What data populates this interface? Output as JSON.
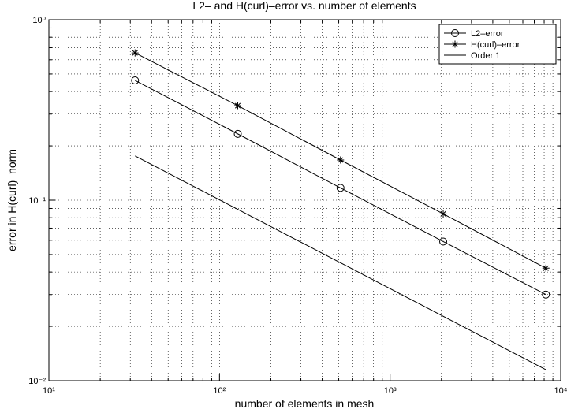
{
  "chart_data": {
    "type": "line",
    "title": "L2– and H(curl)–error vs. number of elements",
    "xlabel": "number of elements in mesh",
    "ylabel": "error in H(curl)–norm",
    "xscale": "log",
    "yscale": "log",
    "xlim": [
      10,
      10000
    ],
    "ylim": [
      0.01,
      1
    ],
    "xticks": [
      {
        "value": 10,
        "label": "10¹"
      },
      {
        "value": 100,
        "label": "10²"
      },
      {
        "value": 1000,
        "label": "10³"
      },
      {
        "value": 10000,
        "label": "10⁴"
      }
    ],
    "yticks": [
      {
        "value": 0.01,
        "label": "10⁻²"
      },
      {
        "value": 0.1,
        "label": "10⁻¹"
      },
      {
        "value": 1,
        "label": "10⁰"
      }
    ],
    "grid": true,
    "legend": "upper right",
    "x": [
      32,
      128,
      512,
      2048,
      8192
    ],
    "series": [
      {
        "name": "L2–error",
        "color": "#000000",
        "marker": "o",
        "values": [
          0.461,
          0.233,
          0.117,
          0.059,
          0.03
        ]
      },
      {
        "name": "H(curl)–error",
        "color": "#000000",
        "marker": "*",
        "values": [
          0.655,
          0.334,
          0.167,
          0.084,
          0.042
        ]
      },
      {
        "name": "Order 1",
        "color": "#000000",
        "marker": "none",
        "values": [
          0.176,
          null,
          null,
          null,
          0.0115
        ]
      }
    ]
  }
}
